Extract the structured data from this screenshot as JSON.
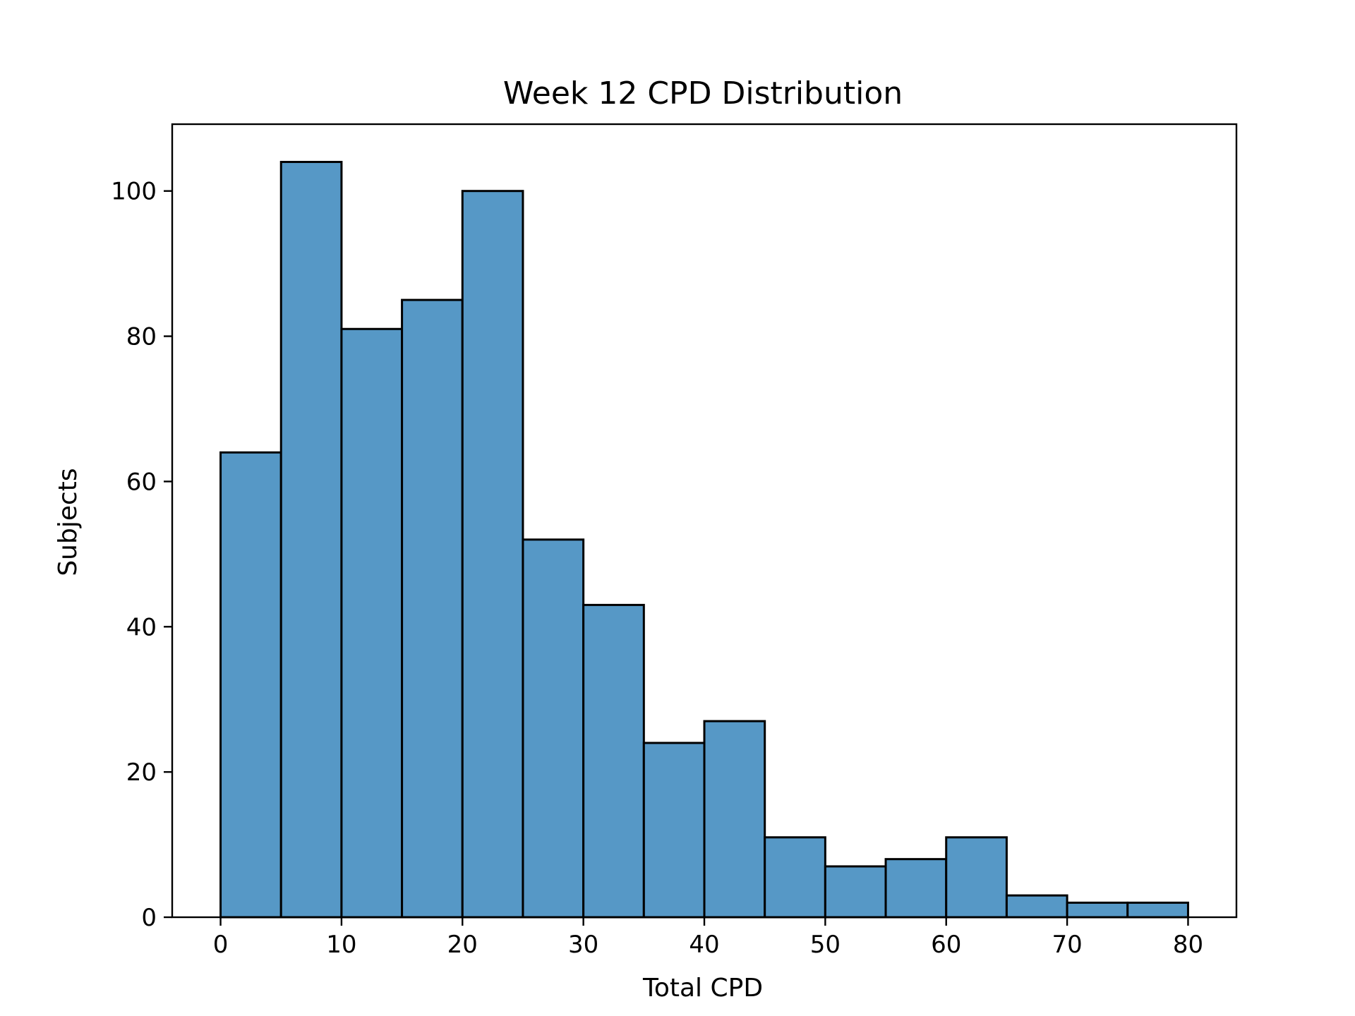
{
  "chart_data": {
    "type": "bar",
    "title": "Week 12 CPD Distribution",
    "xlabel": "Total CPD",
    "ylabel": "Subjects",
    "bin_edges": [
      0,
      5,
      10,
      15,
      20,
      25,
      30,
      35,
      40,
      45,
      50,
      55,
      60,
      65,
      70,
      75,
      80
    ],
    "values": [
      64,
      104,
      81,
      85,
      100,
      52,
      43,
      24,
      27,
      11,
      7,
      8,
      11,
      3,
      2,
      2
    ],
    "xlim": [
      -4,
      84
    ],
    "ylim": [
      0,
      109.2
    ],
    "xticks": [
      0,
      10,
      20,
      30,
      40,
      50,
      60,
      70,
      80
    ],
    "yticks": [
      0,
      20,
      40,
      60,
      80,
      100
    ],
    "bar_color": "#5698C6",
    "edge_color": "#000000",
    "grid": false,
    "legend": "none"
  }
}
